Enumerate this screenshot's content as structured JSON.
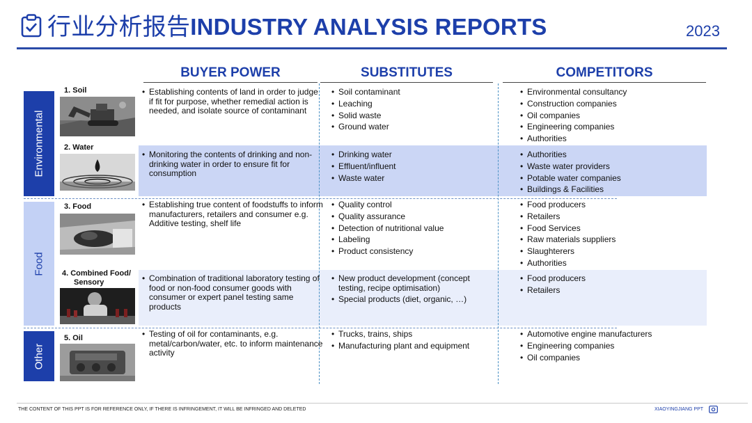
{
  "header": {
    "title_cn": "行业分析报告",
    "title_en": "INDUSTRY ANALYSIS REPORTS",
    "year": "2023"
  },
  "columns": [
    {
      "title": "BUYER POWER"
    },
    {
      "title": "SUBSTITUTES"
    },
    {
      "title": "COMPETITORS"
    }
  ],
  "categories": [
    {
      "label": "Environmental"
    },
    {
      "label": "Food"
    },
    {
      "label": "Other"
    }
  ],
  "rows": [
    {
      "label": "1. Soil",
      "image": "soil-excavator-photo",
      "buyer": [
        "Establishing contents of land in order to judge if fit for purpose, whether remedial action is needed, and isolate source of contaminant"
      ],
      "substitutes": [
        "Soil contaminant",
        "Leaching",
        "Solid waste",
        "Ground water"
      ],
      "competitors": [
        "Environmental consultancy",
        "Construction companies",
        "Oil companies",
        "Engineering companies",
        "Authorities"
      ]
    },
    {
      "label": "2. Water",
      "image": "water-droplet-photo",
      "buyer": [
        "Monitoring the contents of drinking and non-drinking water in order to ensure fit for consumption"
      ],
      "substitutes": [
        "Drinking water",
        "Effluent/influent",
        "Waste water"
      ],
      "competitors": [
        "Authorities",
        "Waste water providers",
        "Potable water companies",
        "Buildings & Facilities"
      ]
    },
    {
      "label": "3. Food",
      "image": "food-photo",
      "buyer": [
        "Establishing true content of foodstuffs to inform manufacturers, retailers and consumer e.g. Additive testing, shelf life"
      ],
      "substitutes": [
        "Quality control",
        "Quality assurance",
        "Detection of nutritional value",
        "Labeling",
        "Product consistency"
      ],
      "competitors": [
        "Food producers",
        "Retailers",
        "Food Services",
        "Raw materials suppliers",
        "Slaughterers",
        "Authorities"
      ]
    },
    {
      "label_line1": "4. Combined Food/",
      "label_line2": "Sensory",
      "image": "sensory-panel-photo",
      "buyer": [
        "Combination of traditional laboratory testing of food or non-food consumer goods with consumer or expert panel testing same products"
      ],
      "substitutes": [
        "New product development (concept testing, recipe optimisation)",
        "Special products (diet, organic, …)"
      ],
      "competitors": [
        "Food producers",
        "Retailers"
      ]
    },
    {
      "label": "5. Oil",
      "image": "engine-photo",
      "buyer": [
        "Testing of oil for contaminants, e.g. metal/carbon/water, etc. to inform maintenance activity"
      ],
      "substitutes": [
        "Trucks, trains, ships",
        "Manufacturing plant and equipment"
      ],
      "competitors": [
        "Automotive engine manufacturers",
        "Engineering companies",
        "Oil companies"
      ]
    }
  ],
  "footer": {
    "disclaimer": "THE CONTENT OF THIS PPT IS FOR REFERENCE ONLY, IF THERE IS INFRINGEMENT, IT WILL BE INFRINGED AND DELETED",
    "brand": "XIAOYINGJIANG PPT"
  },
  "colors": {
    "accent": "#1d3faa",
    "band_dark": "#cbd6f5",
    "band_light": "#e9eefb"
  }
}
